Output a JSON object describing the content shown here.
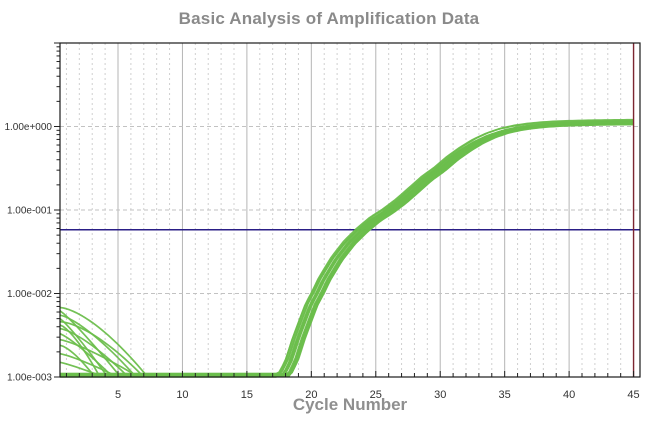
{
  "window": {
    "background": "#ffffff"
  },
  "chart_data": {
    "type": "line",
    "title": "Basic Analysis of Amplification Data",
    "xlabel": "Cycle Number",
    "ylabel": "",
    "x_axis": {
      "min": 0.5,
      "max": 45.5,
      "tick_values": [
        5,
        10,
        15,
        20,
        25,
        30,
        35,
        40,
        45
      ],
      "tick_labels": [
        "5",
        "10",
        "15",
        "20",
        "25",
        "30",
        "35",
        "40",
        "45"
      ],
      "minor_tick_step": 1,
      "major_grid_step": 5
    },
    "y_axis": {
      "scale": "log",
      "min": 0.001,
      "max": 10,
      "tick_labels": [
        {
          "value": 1,
          "label": "1.00e+000"
        },
        {
          "value": 0.1,
          "label": "1.00e-001"
        },
        {
          "value": 0.01,
          "label": "1.00e-002"
        },
        {
          "value": 0.001,
          "label": "1.00e-003"
        }
      ],
      "grid_values": [
        0.01,
        0.1,
        1
      ]
    },
    "grid": {
      "major_color": "#b5b5b5",
      "minor_color": "#d0d0d0",
      "h_color": "#c2c2c2"
    },
    "threshold_line": {
      "y": 0.058,
      "color": "#2a1e86"
    },
    "cursor_line": {
      "x": 45,
      "color": "#7c2531"
    },
    "series": {
      "name": "amplification-traces",
      "color": "#6cbe4c",
      "trace_count": 16,
      "baseline": 0.001,
      "plateau": 1.12,
      "threshold_cycle": 24,
      "typical_curve": [
        [
          0.5,
          0.001
        ],
        [
          17.5,
          0.001
        ],
        [
          18,
          0.0011
        ],
        [
          18.5,
          0.0016
        ],
        [
          19,
          0.0028
        ],
        [
          19.5,
          0.0045
        ],
        [
          20,
          0.0072
        ],
        [
          20.5,
          0.01
        ],
        [
          21,
          0.0145
        ],
        [
          22,
          0.026
        ],
        [
          23,
          0.041
        ],
        [
          24,
          0.058
        ],
        [
          25,
          0.078
        ],
        [
          26,
          0.098
        ],
        [
          27,
          0.128
        ],
        [
          28,
          0.175
        ],
        [
          29,
          0.24
        ],
        [
          30,
          0.31
        ],
        [
          31,
          0.42
        ],
        [
          32,
          0.54
        ],
        [
          33,
          0.67
        ],
        [
          34,
          0.79
        ],
        [
          35,
          0.89
        ],
        [
          36,
          0.96
        ],
        [
          37,
          1.01
        ],
        [
          38,
          1.045
        ],
        [
          39,
          1.07
        ],
        [
          40,
          1.085
        ],
        [
          41,
          1.095
        ],
        [
          42,
          1.105
        ],
        [
          43,
          1.11
        ],
        [
          44,
          1.115
        ],
        [
          45,
          1.12
        ]
      ],
      "jitter": {
        "seed": 7,
        "cycle_shift": 0.55,
        "scale_min": 0.94,
        "scale_range": 0.14,
        "baseline_spread": 0.1
      }
    },
    "initial_decay_traces": [
      {
        "start_value": 0.0068,
        "floor_cycle": 7.3
      },
      {
        "start_value": 0.0062,
        "floor_cycle": 5.2
      },
      {
        "start_value": 0.0055,
        "floor_cycle": 6.4
      },
      {
        "start_value": 0.005,
        "floor_cycle": 4.2
      },
      {
        "start_value": 0.0046,
        "floor_cycle": 7.0
      },
      {
        "start_value": 0.0042,
        "floor_cycle": 3.6
      },
      {
        "start_value": 0.0038,
        "floor_cycle": 5.8
      },
      {
        "start_value": 0.0033,
        "floor_cycle": 4.6
      },
      {
        "start_value": 0.0028,
        "floor_cycle": 6.6
      },
      {
        "start_value": 0.0024,
        "floor_cycle": 3.2
      },
      {
        "start_value": 0.0019,
        "floor_cycle": 5.0
      },
      {
        "start_value": 0.0015,
        "floor_cycle": 3.9
      }
    ],
    "text_colors": {
      "title": "#8a8a8a",
      "axis_label": "#8f8f8f",
      "tick": "#333333"
    },
    "plot_border_color": "#1a1a1a"
  }
}
